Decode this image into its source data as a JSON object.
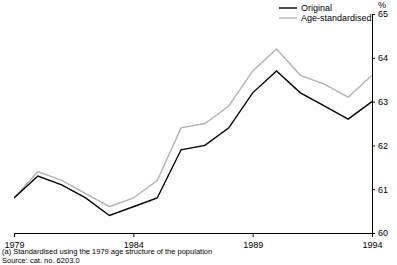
{
  "chart_data": {
    "type": "line",
    "y_label": "%",
    "x": [
      1979,
      1980,
      1981,
      1982,
      1983,
      1984,
      1985,
      1986,
      1987,
      1988,
      1989,
      1990,
      1991,
      1992,
      1993,
      1994
    ],
    "series": [
      {
        "name": "Original",
        "color": "#000000",
        "values": [
          60.8,
          61.3,
          61.1,
          60.8,
          60.4,
          60.6,
          60.8,
          61.9,
          62.0,
          62.4,
          63.2,
          63.7,
          63.2,
          62.9,
          62.6,
          63.0
        ]
      },
      {
        "name": "Age-standardised",
        "color": "#b3b3b3",
        "values": [
          60.8,
          61.4,
          61.2,
          60.9,
          60.6,
          60.8,
          61.2,
          62.4,
          62.5,
          62.9,
          63.7,
          64.2,
          63.6,
          63.4,
          63.1,
          63.6
        ]
      }
    ],
    "xlim": [
      1979,
      1994
    ],
    "xticks": [
      1979,
      1984,
      1989,
      1994
    ],
    "ylim": [
      60,
      65
    ],
    "yticks": [
      60,
      61,
      62,
      63,
      64,
      65
    ],
    "legend": "top-right",
    "annotations": [
      "(a) Standardised using the 1979 age structure of the population",
      "Source: cat. no. 6203.0"
    ]
  }
}
